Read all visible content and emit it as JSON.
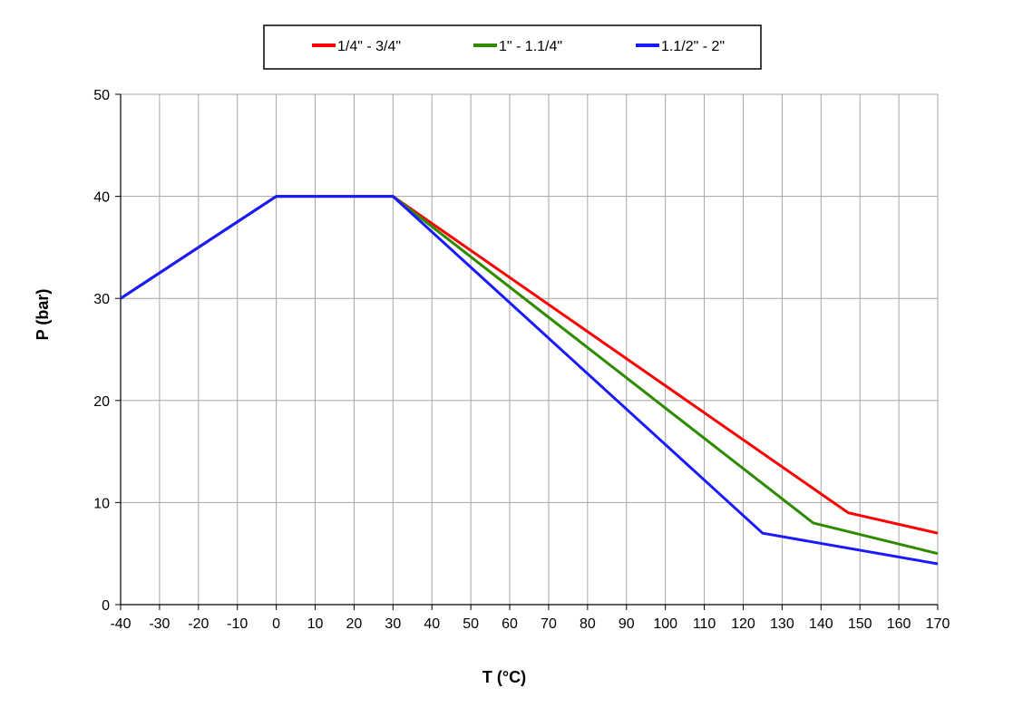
{
  "chart_data": {
    "type": "line",
    "title": "",
    "xlabel": "T (°C)",
    "ylabel": "P (bar)",
    "xlim": [
      -40,
      170
    ],
    "ylim": [
      0,
      50
    ],
    "x_ticks": [
      "-40",
      "-30",
      "-20",
      "-10",
      "0",
      "10",
      "20",
      "30",
      "40",
      "50",
      "60",
      "70",
      "80",
      "90",
      "100",
      "110",
      "120",
      "130",
      "140",
      "150",
      "160",
      "170"
    ],
    "y_ticks": [
      "0",
      "10",
      "20",
      "30",
      "40",
      "50"
    ],
    "grid": true,
    "legend_position": "top",
    "series": [
      {
        "name": "1/4\" - 3/4\"",
        "color": "#ff0000",
        "points": [
          [
            -40,
            30
          ],
          [
            0,
            40
          ],
          [
            30,
            40
          ],
          [
            147,
            9
          ],
          [
            170,
            7
          ]
        ]
      },
      {
        "name": "1\" - 1.1/4\"",
        "color": "#2e8b00",
        "points": [
          [
            -40,
            30
          ],
          [
            0,
            40
          ],
          [
            30,
            40
          ],
          [
            138,
            8
          ],
          [
            170,
            5
          ]
        ]
      },
      {
        "name": "1.1/2\" - 2\"",
        "color": "#1a1aff",
        "points": [
          [
            -40,
            30
          ],
          [
            0,
            40
          ],
          [
            30,
            40
          ],
          [
            125,
            7
          ],
          [
            170,
            4
          ]
        ]
      }
    ]
  }
}
